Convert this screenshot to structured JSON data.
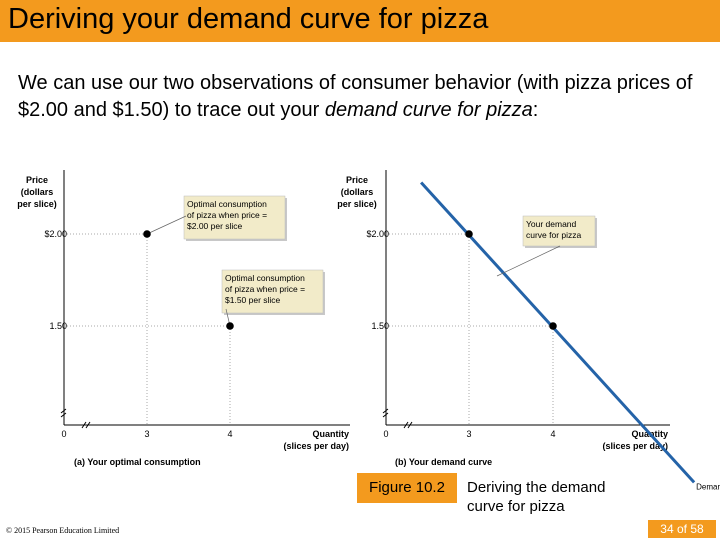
{
  "slide": {
    "title": "Deriving your demand curve for pizza",
    "intro_before": "We can use our two observations of consumer behavior (with pizza prices of $2.00 and $1.50) to trace out your ",
    "intro_emphasis": "demand curve for pizza",
    "intro_after": ":",
    "figure_label": "Figure 10.2",
    "figure_caption": "Deriving the demand curve for pizza",
    "copyright": "© 2015 Pearson Education Limited",
    "page_current": "34",
    "page_of": "of",
    "page_total": "58"
  },
  "colors": {
    "accent": "#f39a1e",
    "callout_fill": "#f2ebc9",
    "demand_line": "#2463a8",
    "grid_dots": "#aaaaaa"
  },
  "chart_data": [
    {
      "type": "scatter",
      "panel_label": "(a) Your optimal consumption",
      "ylabel_lines": [
        "Price",
        "(dollars",
        "per slice)"
      ],
      "xlabel_lines": [
        "Quantity",
        "(slices per day)"
      ],
      "x_ticks": [
        "0",
        "3",
        "4"
      ],
      "y_ticks": [
        "$2.00",
        "1.50"
      ],
      "points": [
        {
          "x": 3,
          "y": 2.0
        },
        {
          "x": 4,
          "y": 1.5
        }
      ],
      "annotations": [
        {
          "lines": [
            "Optimal consumption",
            "of pizza when price =",
            "$2.00 per slice"
          ],
          "target": 0
        },
        {
          "lines": [
            "Optimal consumption",
            "of pizza when price =",
            "$1.50 per slice"
          ],
          "target": 1
        }
      ],
      "axis_break": true
    },
    {
      "type": "line",
      "panel_label": "(b) Your demand curve",
      "ylabel_lines": [
        "Price",
        "(dollars",
        "per slice)"
      ],
      "xlabel_lines": [
        "Quantity",
        "(slices per day)"
      ],
      "x_ticks": [
        "0",
        "3",
        "4"
      ],
      "y_ticks": [
        "$2.00",
        "1.50"
      ],
      "points": [
        {
          "x": 3,
          "y": 2.0
        },
        {
          "x": 4,
          "y": 1.5
        }
      ],
      "series": [
        {
          "name": "Demand",
          "x": [
            2.43,
            5.68
          ],
          "y": [
            2.28,
            0.65
          ]
        }
      ],
      "annotations": [
        {
          "lines": [
            "Your demand",
            "curve for pizza"
          ],
          "target": "line"
        }
      ],
      "axis_break": true
    }
  ]
}
